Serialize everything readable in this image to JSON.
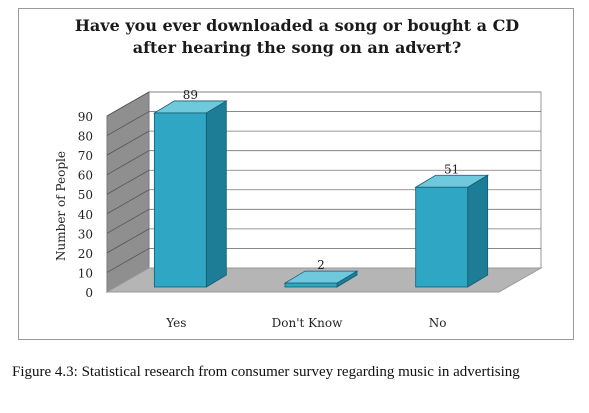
{
  "figure": {
    "caption": "Figure 4.3: Statistical research from consumer survey regarding music in advertising"
  },
  "chart_data": {
    "type": "bar",
    "title_lines": [
      "Have you ever downloaded a song or bought a CD",
      "after hearing the song on an advert?"
    ],
    "categories": [
      "Yes",
      "Don't Know",
      "No"
    ],
    "values": [
      89,
      2,
      51
    ],
    "data_labels": [
      "89",
      "2",
      "51"
    ],
    "ylabel": "Number of People",
    "xlabel": "",
    "ylim": [
      0,
      90
    ],
    "yticks": [
      "0",
      "10",
      "20",
      "30",
      "40",
      "50",
      "60",
      "70",
      "80",
      "90"
    ],
    "grid": true,
    "legend": "none",
    "style": "3d-column",
    "colors": {
      "bar_front": "#2fa6c3",
      "bar_side": "#1d7c96",
      "bar_top": "#6fc8dc",
      "floor": "#b5b5b5",
      "back_wall": "#ffffff",
      "side_wall": "#8f8f8f"
    }
  }
}
